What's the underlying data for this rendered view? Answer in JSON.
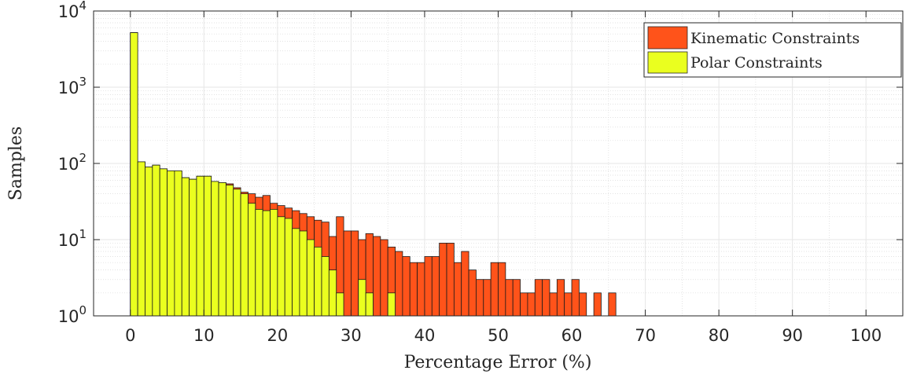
{
  "chart_data": {
    "type": "bar",
    "xlabel": "Percentage Error (%)",
    "ylabel": "Samples",
    "xlim": [
      -5,
      105
    ],
    "ylim": [
      1,
      10000
    ],
    "yscale": "log",
    "grid": true,
    "legend_position": "top-right",
    "bin_width": 1,
    "x_ticks": [
      "0",
      "10",
      "20",
      "30",
      "40",
      "50",
      "60",
      "70",
      "80",
      "90",
      "100"
    ],
    "y_ticks": [
      {
        "base": "10",
        "exp": "0",
        "value": 1
      },
      {
        "base": "10",
        "exp": "1",
        "value": 10
      },
      {
        "base": "10",
        "exp": "2",
        "value": 100
      },
      {
        "base": "10",
        "exp": "3",
        "value": 1000
      },
      {
        "base": "10",
        "exp": "4",
        "value": 10000
      }
    ],
    "series": [
      {
        "name": "Kinematic Constraints",
        "color": "#ff531a",
        "bin_start": 0,
        "values": [
          5200,
          105,
          90,
          95,
          85,
          80,
          80,
          65,
          62,
          68,
          68,
          58,
          56,
          54,
          48,
          42,
          40,
          36,
          38,
          30,
          28,
          26,
          24,
          22,
          20,
          18,
          17,
          11,
          20,
          13,
          13,
          10,
          12,
          11,
          10,
          8,
          7,
          6,
          5,
          5,
          6,
          6,
          9,
          9,
          5,
          7,
          4,
          3,
          3,
          5,
          5,
          3,
          3,
          2,
          2,
          3,
          3,
          2,
          3,
          2,
          3,
          2,
          1,
          2,
          1,
          2
        ]
      },
      {
        "name": "Polar Constraints",
        "color": "#eaff1f",
        "bin_start": 0,
        "values": [
          5200,
          105,
          90,
          95,
          85,
          80,
          80,
          65,
          62,
          68,
          68,
          58,
          56,
          52,
          46,
          40,
          30,
          25,
          24,
          25,
          20,
          19,
          14,
          13,
          10,
          8,
          6,
          4,
          2,
          1,
          1,
          3,
          2,
          1,
          1,
          2
        ]
      }
    ]
  }
}
